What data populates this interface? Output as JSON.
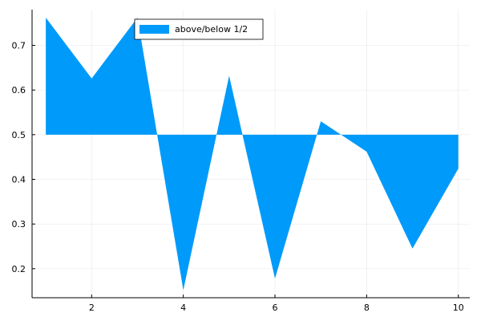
{
  "chart_data": {
    "type": "area",
    "title": "",
    "xlabel": "",
    "ylabel": "",
    "baseline": 0.5,
    "series": [
      {
        "name": "above/below 1/2",
        "color": "#009AFA",
        "x": [
          1,
          2,
          3,
          4,
          5,
          6,
          7,
          8,
          9,
          10
        ],
        "y": [
          0.762,
          0.626,
          0.762,
          0.152,
          0.632,
          0.178,
          0.53,
          0.462,
          0.245,
          0.424
        ]
      }
    ],
    "xlim": [
      0.7,
      10.25
    ],
    "ylim": [
      0.135,
      0.78
    ],
    "xticks": [
      2,
      4,
      6,
      8,
      10
    ],
    "yticks": [
      0.2,
      0.3,
      0.4,
      0.5,
      0.6,
      0.7
    ],
    "grid": true,
    "legend": "top-left",
    "legend_entries": [
      "above/below 1/2"
    ]
  }
}
